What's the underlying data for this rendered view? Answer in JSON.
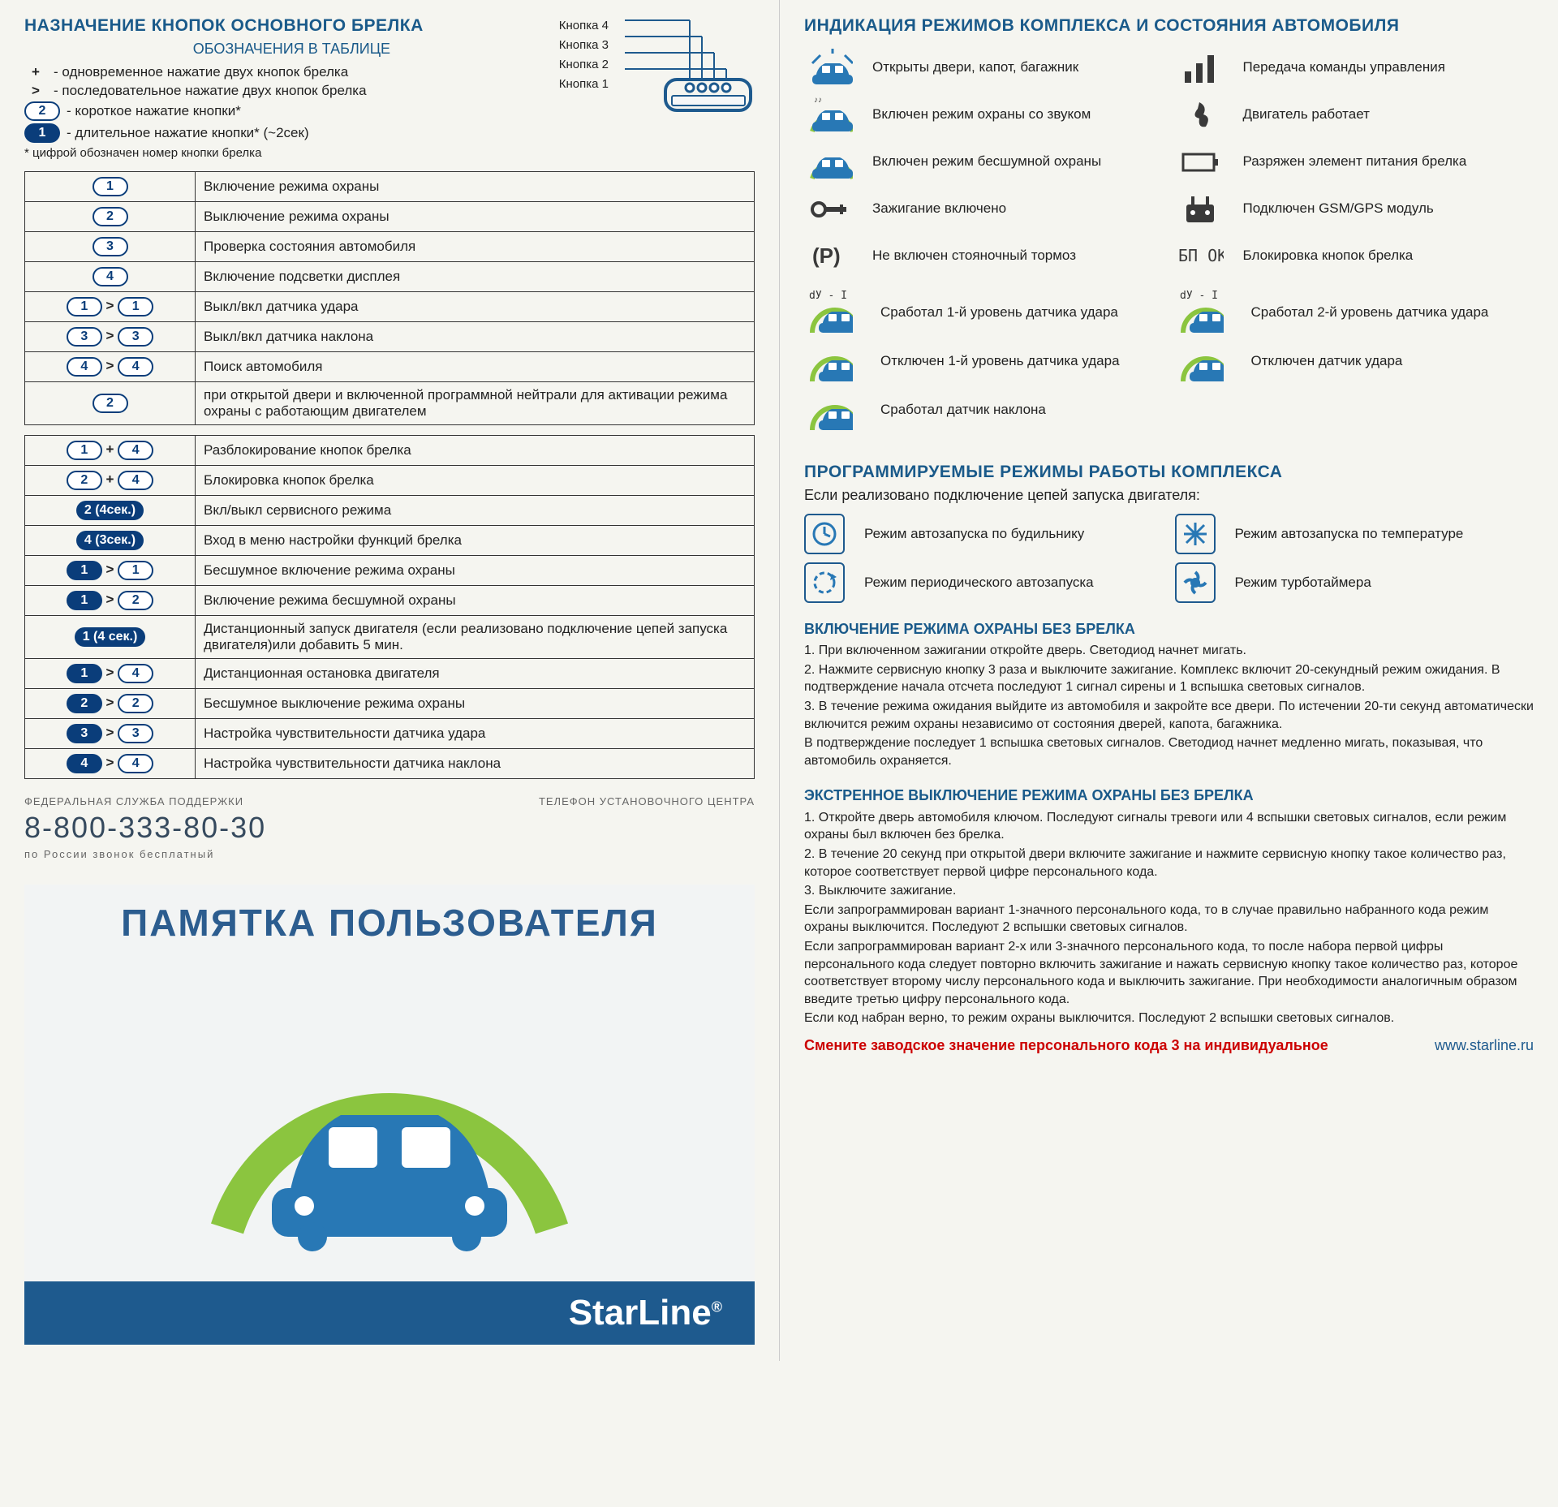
{
  "left": {
    "title": "НАЗНАЧЕНИЕ КНОПОК ОСНОВНОГО БРЕЛКА",
    "subtitle": "ОБОЗНАЧЕНИЯ В ТАБЛИЦЕ",
    "legend": [
      {
        "sym": "+",
        "text": "- одновременное нажатие двух кнопок брелка"
      },
      {
        "sym": ">",
        "text": "- последовательное нажатие двух кнопок брелка"
      },
      {
        "sym": "pill2",
        "text": "- короткое нажатие кнопки*"
      },
      {
        "sym": "pill1solid",
        "text": "- длительное нажатие кнопки* (~2сек)"
      }
    ],
    "legend_note": "* цифрой обозначен номер кнопки брелка",
    "keyfob_labels": [
      "Кнопка 4",
      "Кнопка 3",
      "Кнопка 2",
      "Кнопка 1"
    ],
    "table1": [
      {
        "k": [
          [
            "1",
            "o"
          ]
        ],
        "t": "Включение режима охраны"
      },
      {
        "k": [
          [
            "2",
            "o"
          ]
        ],
        "t": "Выключение режима охраны"
      },
      {
        "k": [
          [
            "3",
            "o"
          ]
        ],
        "t": "Проверка состояния автомобиля"
      },
      {
        "k": [
          [
            "4",
            "o"
          ]
        ],
        "t": "Включение подсветки дисплея"
      },
      {
        "k": [
          [
            "1",
            "o"
          ],
          ">",
          [
            "1",
            "o"
          ]
        ],
        "t": "Выкл/вкл датчика удара"
      },
      {
        "k": [
          [
            "3",
            "o"
          ],
          ">",
          [
            "3",
            "o"
          ]
        ],
        "t": "Выкл/вкл датчика наклона"
      },
      {
        "k": [
          [
            "4",
            "o"
          ],
          ">",
          [
            "4",
            "o"
          ]
        ],
        "t": "Поиск автомобиля"
      }
    ],
    "table1b": {
      "k": [
        [
          "2",
          "o"
        ]
      ],
      "t": "при открытой двери и включенной программной нейтрали для активации режима охраны с работающим двигателем"
    },
    "table2": [
      {
        "k": [
          [
            "1",
            "o"
          ],
          "+",
          [
            "4",
            "o"
          ]
        ],
        "t": "Разблокирование кнопок брелка"
      },
      {
        "k": [
          [
            "2",
            "o"
          ],
          "+",
          [
            "4",
            "o"
          ]
        ],
        "t": "Блокировка кнопок брелка"
      },
      {
        "k": [
          [
            "2 (4сек.)",
            "s"
          ]
        ],
        "t": "Вкл/выкл сервисного режима"
      },
      {
        "k": [
          [
            "4 (3сек.)",
            "s"
          ]
        ],
        "t": "Вход в меню настройки функций брелка"
      },
      {
        "k": [
          [
            "1",
            "s"
          ],
          ">",
          [
            "1",
            "o"
          ]
        ],
        "t": "Бесшумное включение режима охраны"
      },
      {
        "k": [
          [
            "1",
            "s"
          ],
          ">",
          [
            "2",
            "o"
          ]
        ],
        "t": "Включение режима бесшумной охраны"
      },
      {
        "k": [
          [
            "1 (4 сек.)",
            "s"
          ]
        ],
        "t": "Дистанционный запуск двигателя (если реализовано подключение цепей запуска двигателя)или добавить 5 мин."
      },
      {
        "k": [
          [
            "1",
            "s"
          ],
          ">",
          [
            "4",
            "o"
          ]
        ],
        "t": "Дистанционная остановка двигателя"
      },
      {
        "k": [
          [
            "2",
            "s"
          ],
          ">",
          [
            "2",
            "o"
          ]
        ],
        "t": "Бесшумное выключение режима охраны"
      },
      {
        "k": [
          [
            "3",
            "s"
          ],
          ">",
          [
            "3",
            "o"
          ]
        ],
        "t": "Настройка чувствительности датчика удара"
      },
      {
        "k": [
          [
            "4",
            "s"
          ],
          ">",
          [
            "4",
            "o"
          ]
        ],
        "t": "Настройка чувствительности датчика наклона"
      }
    ],
    "support_label": "ФЕДЕРАЛЬНАЯ СЛУЖБА ПОДДЕРЖКИ",
    "install_label": "ТЕЛЕФОН УСТАНОВОЧНОГО ЦЕНТРА",
    "phone": "8-800-333-80-30",
    "phone_sub": "по России звонок бесплатный",
    "banner_title": "ПАМЯТКА ПОЛЬЗОВАТЕЛЯ",
    "brand": "StarLine"
  },
  "right": {
    "indic_title": "ИНДИКАЦИЯ РЕЖИМОВ КОМПЛЕКСА И СОСТОЯНИЯ АВТОМОБИЛЯ",
    "indications": [
      {
        "i": "car-open",
        "t": "Открыты двери, капот, багажник"
      },
      {
        "i": "bars",
        "t": "Передача команды управления"
      },
      {
        "i": "car-sound",
        "t": "Включен режим охраны со звуком"
      },
      {
        "i": "smoke",
        "t": "Двигатель работает"
      },
      {
        "i": "car-silent",
        "t": "Включен режим бесшумной охраны"
      },
      {
        "i": "battery",
        "t": "Разряжен элемент питания брелка"
      },
      {
        "i": "key",
        "t": "Зажигание включено"
      },
      {
        "i": "gsm",
        "t": "Подключен GSM/GPS модуль"
      },
      {
        "i": "parking",
        "t": "Не включен стояночный тормоз"
      },
      {
        "i": "lock",
        "t": "Блокировка кнопок брелка"
      }
    ],
    "sensors": [
      {
        "lbl": "dУ - I",
        "t": "Сработал 1-й уровень датчика удара"
      },
      {
        "lbl": "dУ - I",
        "t": "Сработал 2-й уровень датчика удара"
      },
      {
        "lbl": "",
        "t": "Отключен 1-й уровень датчика удара"
      },
      {
        "lbl": "",
        "t": "Отключен датчик удара"
      },
      {
        "lbl": "",
        "t": "Сработал датчик наклона"
      }
    ],
    "prog_title": "ПРОГРАММИРУЕМЫЕ РЕЖИМЫ РАБОТЫ КОМПЛЕКСА",
    "prog_sub": "Если реализовано подключение цепей запуска двигателя:",
    "prog": [
      {
        "i": "clock",
        "t": "Режим автозапуска по будильнику"
      },
      {
        "i": "snow",
        "t": "Режим автозапуска по температуре"
      },
      {
        "i": "period",
        "t": "Режим периодического автозапуска"
      },
      {
        "i": "turbo",
        "t": "Режим турботаймера"
      }
    ],
    "arm_title": "ВКЛЮЧЕНИЕ РЕЖИМА ОХРАНЫ БЕЗ БРЕЛКА",
    "arm": [
      "1. При включенном зажигании откройте дверь. Светодиод начнет мигать.",
      "2. Нажмите сервисную кнопку 3 раза и выключите зажигание. Комплекс включит 20-секундный режим ожидания. В подтверждение начала отсчета последуют 1 сигнал сирены и 1 вспышка световых сигналов.",
      "3. В течение режима ожидания выйдите из автомобиля и закройте все двери. По истечении 20-ти секунд автоматически включится режим охраны независимо от состояния дверей, капота, багажника.",
      "В подтверждение последует 1 вспышка световых сигналов. Светодиод начнет медленно мигать, показывая, что автомобиль охраняется."
    ],
    "disarm_title": "ЭКСТРЕННОЕ ВЫКЛЮЧЕНИЕ РЕЖИМА ОХРАНЫ БЕЗ БРЕЛКА",
    "disarm": [
      "1. Откройте дверь автомобиля ключом. Последуют сигналы тревоги или 4 вспышки световых сигналов, если режим охраны был включен без брелка.",
      "2. В течение 20 секунд при открытой двери включите зажигание и нажмите сервисную кнопку такое количество раз, которое соответствует первой цифре персонального кода.",
      "3. Выключите зажигание.",
      "Если запрограммирован вариант 1-значного персонального кода, то в случае правильно набранного кода режим охраны выключится. Последуют 2 вспышки световых сигналов.",
      "Если запрограммирован вариант 2-х или 3-значного персонального кода, то после набора первой цифры персонального кода следует повторно включить зажигание и нажать сервисную кнопку такое количество раз, которое соответствует второму числу персонального кода и выключить зажигание. При необходимости аналогичным образом введите третью цифру персонального кода.",
      "Если код набран верно, то режим охраны выключится. Последуют 2 вспышки световых сигналов."
    ],
    "warn": "Смените заводское значение персонального кода 3 на индивидуальное",
    "url": "www.starline.ru"
  },
  "colors": {
    "brand": "#1e5a8e",
    "accent": "#8bc53f",
    "pill": "#0a3d7a"
  }
}
